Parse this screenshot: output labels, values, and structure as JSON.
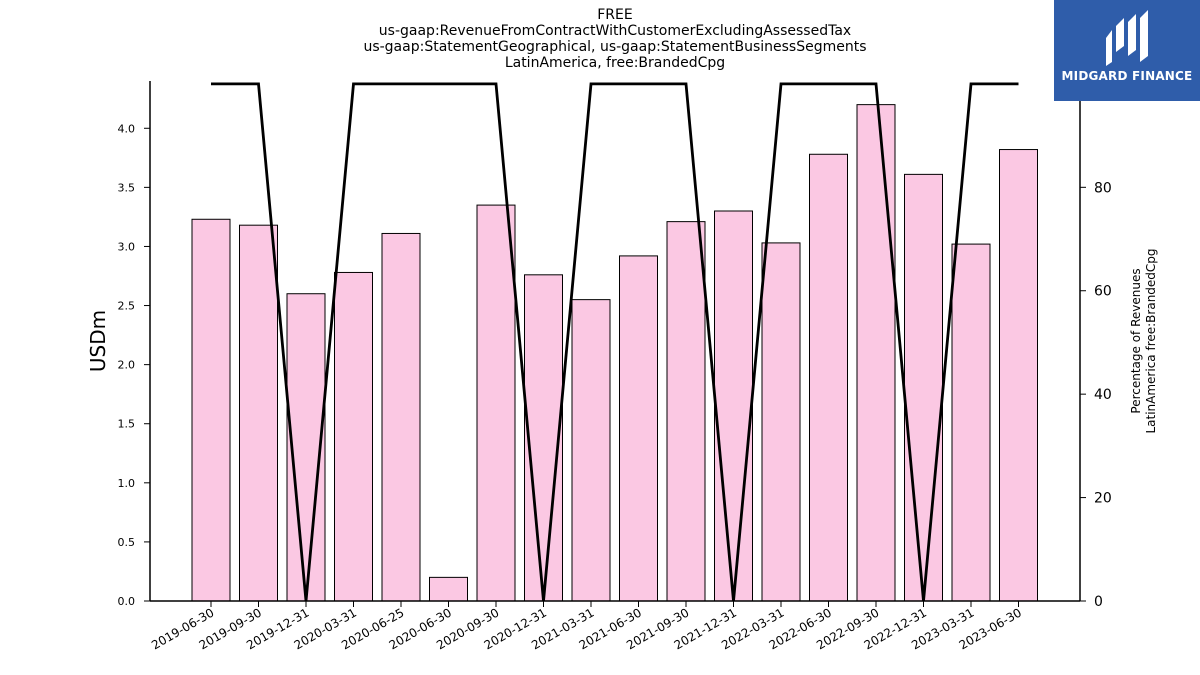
{
  "chart_data": {
    "type": "bar",
    "title_lines": [
      "FREE",
      "us-gaap:RevenueFromContractWithCustomerExcludingAssessedTax",
      "us-gaap:StatementGeographical, us-gaap:StatementBusinessSegments",
      "LatinAmerica, free:BrandedCpg"
    ],
    "ylabel": "USDm",
    "ylabel_right_lines": [
      "Percentage of Revenues",
      "LatinAmerica free:BrandedCpg"
    ],
    "categories": [
      "2019-06-30",
      "2019-09-30",
      "2019-12-31",
      "2020-03-31",
      "2020-06-25",
      "2020-06-30",
      "2020-09-30",
      "2020-12-31",
      "2021-03-31",
      "2021-06-30",
      "2021-09-30",
      "2021-12-31",
      "2022-03-31",
      "2022-06-30",
      "2022-09-30",
      "2022-12-31",
      "2023-03-31",
      "2023-06-30"
    ],
    "series": [
      {
        "type": "bar",
        "axis": "left",
        "values": [
          3.23,
          3.18,
          2.6,
          2.78,
          3.11,
          0.2,
          3.35,
          2.76,
          2.55,
          2.92,
          3.21,
          3.3,
          3.03,
          3.78,
          4.2,
          3.61,
          3.02,
          3.82
        ]
      },
      {
        "type": "line",
        "axis": "right",
        "values": [
          100,
          100,
          0,
          100,
          100,
          100,
          100,
          0,
          100,
          100,
          100,
          0,
          100,
          100,
          100,
          0,
          100,
          100
        ]
      }
    ],
    "ylim": [
      0,
      4.4
    ],
    "yticks": [
      "0.0",
      "0.5",
      "1.0",
      "1.5",
      "2.0",
      "2.5",
      "3.0",
      "3.5",
      "4.0"
    ],
    "ylim_right": [
      0,
      100.56
    ],
    "yticks_right": [
      "0",
      "20",
      "40",
      "60",
      "80",
      "100"
    ],
    "colors": {
      "bar_fill": "#fbc8e3",
      "bar_edge": "#000000",
      "line": "#000000"
    },
    "grid": false
  },
  "logo": {
    "text": "MIDGARD FINANCE",
    "background": "#2f5daa"
  }
}
